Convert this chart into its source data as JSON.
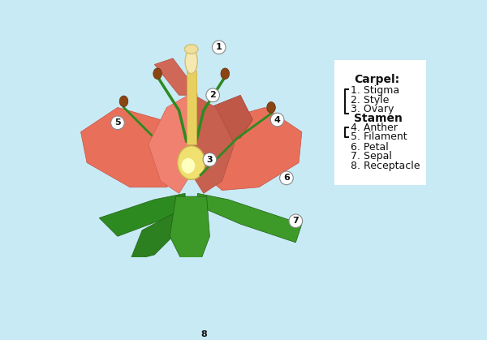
{
  "bg_color": "#c8eaf5",
  "legend_bg": "#ffffff",
  "title": "",
  "labels": {
    "1": "1. Stigma",
    "2": "2. Style",
    "3": "3. Ovary",
    "4": "4. Anther",
    "5": "5. Filament",
    "6": "6. Petal",
    "7": "7. Sepal",
    "8": "8. Receptacle"
  },
  "legend_title_carpel": "Carpel:",
  "legend_title_stamen": "Stamen",
  "petal_color": "#e8705a",
  "petal_color2": "#f0907a",
  "sepal_color": "#2d7a1f",
  "sepal_color2": "#3d9a2f",
  "style_color": "#e8d060",
  "ovary_color": "#f0e070",
  "stigma_color": "#f5e8b0",
  "stem_color": "#3d8a25",
  "anther_color": "#8b4513",
  "filament_color": "#2d7a1f",
  "label_circle_color": "#ffffff",
  "label_text_color": "#111111"
}
